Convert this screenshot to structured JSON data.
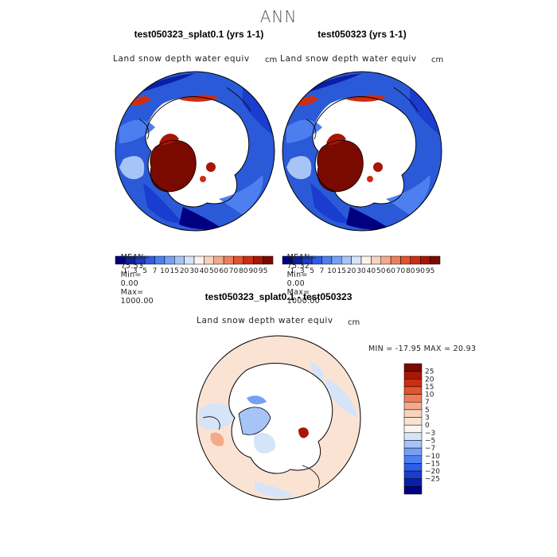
{
  "title": "ANN",
  "panels": [
    {
      "title": "test050323_splat0.1 (yrs 1-1)",
      "field": "Land snow depth water equiv",
      "units": "cm",
      "stats": {
        "mean": "75.53",
        "min": "0.00",
        "max": "1000.00"
      }
    },
    {
      "title": "test050323 (yrs 1-1)",
      "field": "Land snow depth water equiv",
      "units": "cm",
      "stats": {
        "mean": "75.32",
        "min": "0.00",
        "max": "1000.00"
      }
    }
  ],
  "stat_labels": {
    "mean": "MEAN=",
    "min": "Min=",
    "max": "Max="
  },
  "colorbar_top": {
    "ticks": [
      "1",
      "3",
      "5",
      "7",
      "10",
      "15",
      "20",
      "30",
      "40",
      "50",
      "60",
      "70",
      "80",
      "90",
      "95"
    ],
    "colors": [
      "#000080",
      "#0a1fa8",
      "#1a3ccf",
      "#2f5de6",
      "#4d7ff0",
      "#76a0f4",
      "#a7c4f7",
      "#d6e4fa",
      "#fbf3ea",
      "#f8d2bd",
      "#f4a98a",
      "#ee7d5b",
      "#e2532e",
      "#cc2e12",
      "#a71606",
      "#7a0a00"
    ]
  },
  "diff_panel": {
    "title": "test050323_splat0.1 - test050323",
    "field": "Land snow depth water equiv",
    "units": "cm",
    "minmax_text": "MIN = -17.95 MAX = 20.93"
  },
  "colorbar_diff": {
    "ticks": [
      "25",
      "20",
      "15",
      "10",
      "7",
      "5",
      "3",
      "0",
      "−3",
      "−5",
      "−7",
      "−10",
      "−15",
      "−20",
      "−25"
    ],
    "colors": [
      "#7a0a00",
      "#a71606",
      "#cc2e12",
      "#e2532e",
      "#ee7d5b",
      "#f4a98a",
      "#f8d2bd",
      "#fbe3d3",
      "#fdf5ee",
      "#d6e4fa",
      "#a7c4f7",
      "#76a0f4",
      "#4d7ff0",
      "#2f5de6",
      "#1a3ccf",
      "#0a1fa8",
      "#000080"
    ]
  }
}
